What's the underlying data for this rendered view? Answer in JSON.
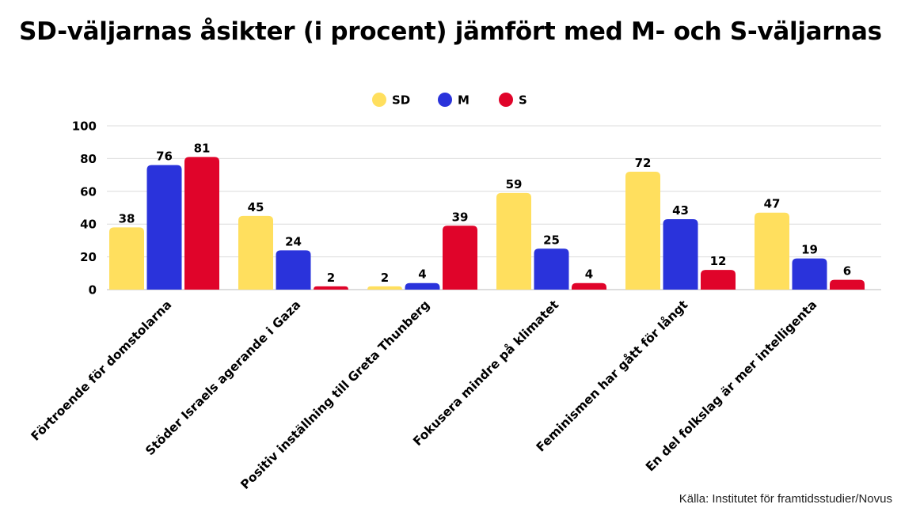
{
  "chart_data": {
    "type": "bar",
    "title": "SD-väljarnas åsikter (i procent) jämfört med M- och S-väljarnas",
    "categories": [
      "Förtroende för domstolarna",
      "Stöder Israels agerande i Gaza",
      "Positiv inställning till Greta Thunberg",
      "Fokusera mindre på klimatet",
      "Feminismen har gått för långt",
      "En del folkslag är mer intelligenta"
    ],
    "series": [
      {
        "name": "SD",
        "color": "#FFDF5E",
        "values": [
          38,
          45,
          2,
          59,
          72,
          47
        ]
      },
      {
        "name": "M",
        "color": "#2A33DB",
        "values": [
          76,
          24,
          4,
          25,
          43,
          19
        ]
      },
      {
        "name": "S",
        "color": "#E0042A",
        "values": [
          81,
          2,
          39,
          4,
          12,
          6
        ]
      }
    ],
    "ylim": [
      0,
      100
    ],
    "yticks": [
      0,
      20,
      40,
      60,
      80,
      100
    ],
    "grid": true,
    "legend": "top-center",
    "source": "Källa: Institutet för framtidsstudier/Novus"
  }
}
